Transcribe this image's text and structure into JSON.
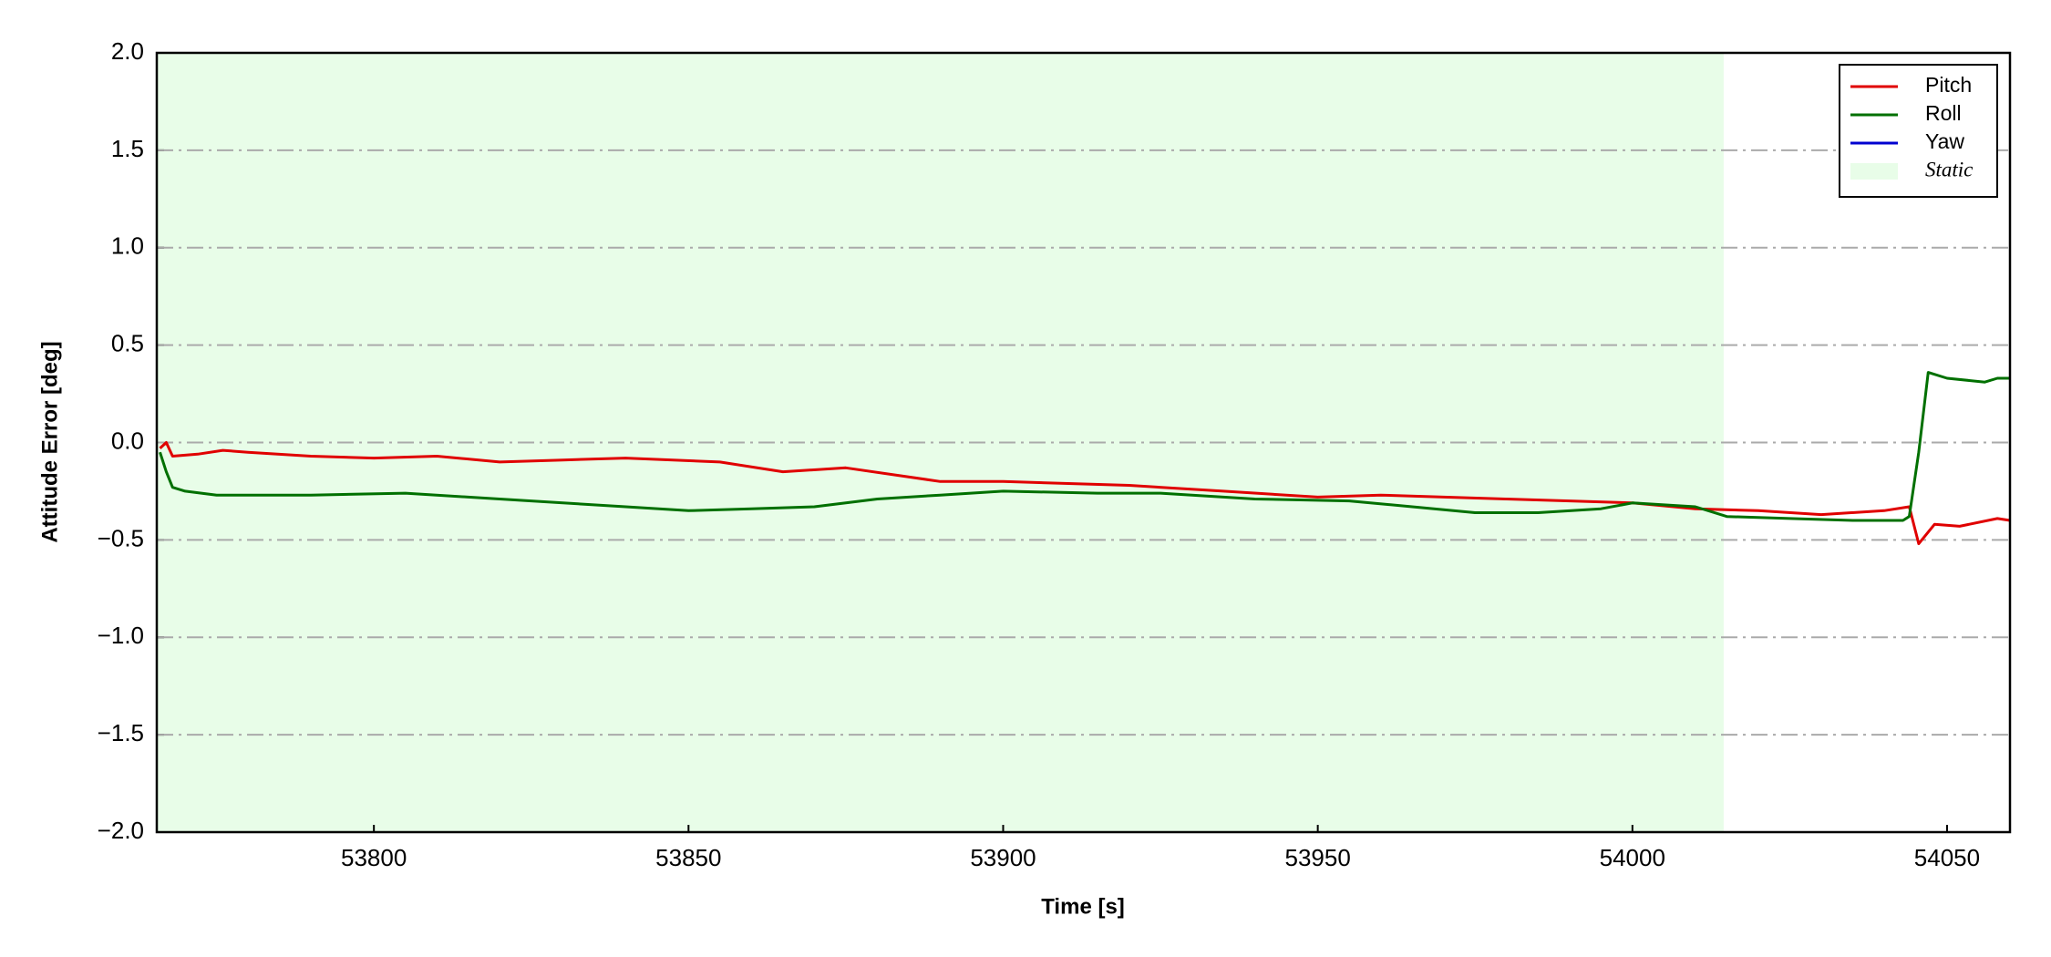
{
  "chart_data": {
    "type": "line",
    "xlabel": "Time [s]",
    "ylabel": "Attitude Error [deg]",
    "xlim": [
      53765.5,
      54060
    ],
    "ylim": [
      -2.0,
      2.0
    ],
    "xticks": [
      53800,
      53850,
      53900,
      53950,
      54000,
      54050
    ],
    "yticks": [
      {
        "value": -2.0,
        "label": "−2.0"
      },
      {
        "value": -1.5,
        "label": "−1.5"
      },
      {
        "value": -1.0,
        "label": "−1.0"
      },
      {
        "value": -0.5,
        "label": "−0.5"
      },
      {
        "value": 0.0,
        "label": "0.0"
      },
      {
        "value": 0.5,
        "label": "0.5"
      },
      {
        "value": 1.0,
        "label": "1.0"
      },
      {
        "value": 1.5,
        "label": "1.5"
      },
      {
        "value": 2.0,
        "label": "2.0"
      }
    ],
    "grid": true,
    "legend": "upper right",
    "static": {
      "label": "Static",
      "color": "#e8fde8",
      "xrange": [
        53765.5,
        54014.5
      ]
    },
    "series": [
      {
        "name": "Pitch",
        "color": "#e00000",
        "x": [
          53766,
          53767,
          53768,
          53772,
          53776,
          53780,
          53790,
          53800,
          53810,
          53820,
          53830,
          53840,
          53855,
          53865,
          53875,
          53890,
          53900,
          53920,
          53935,
          53950,
          53960,
          53980,
          54000,
          54010,
          54020,
          54030,
          54040,
          54044,
          54045.5,
          54048,
          54052,
          54058,
          54060
        ],
        "values": [
          -0.03,
          0.0,
          -0.07,
          -0.06,
          -0.04,
          -0.05,
          -0.07,
          -0.08,
          -0.07,
          -0.1,
          -0.09,
          -0.08,
          -0.1,
          -0.15,
          -0.13,
          -0.2,
          -0.2,
          -0.22,
          -0.25,
          -0.28,
          -0.27,
          -0.29,
          -0.31,
          -0.34,
          -0.35,
          -0.37,
          -0.35,
          -0.33,
          -0.52,
          -0.42,
          -0.43,
          -0.39,
          -0.4
        ]
      },
      {
        "name": "Roll",
        "color": "#007000",
        "x": [
          53766,
          53767,
          53768,
          53770,
          53775,
          53790,
          53805,
          53815,
          53825,
          53840,
          53850,
          53860,
          53870,
          53880,
          53890,
          53900,
          53915,
          53925,
          53940,
          53955,
          53965,
          53975,
          53985,
          53995,
          54000,
          54010,
          54015,
          54025,
          54035,
          54043,
          54044,
          54045.5,
          54047,
          54050,
          54056,
          54058,
          54060
        ],
        "values": [
          -0.05,
          -0.15,
          -0.23,
          -0.25,
          -0.27,
          -0.27,
          -0.26,
          -0.28,
          -0.3,
          -0.33,
          -0.35,
          -0.34,
          -0.33,
          -0.29,
          -0.27,
          -0.25,
          -0.26,
          -0.26,
          -0.29,
          -0.3,
          -0.33,
          -0.36,
          -0.36,
          -0.34,
          -0.31,
          -0.33,
          -0.38,
          -0.39,
          -0.4,
          -0.4,
          -0.38,
          -0.05,
          0.36,
          0.33,
          0.31,
          0.33,
          0.33
        ]
      },
      {
        "name": "Yaw",
        "color": "#0000d0"
      }
    ]
  }
}
